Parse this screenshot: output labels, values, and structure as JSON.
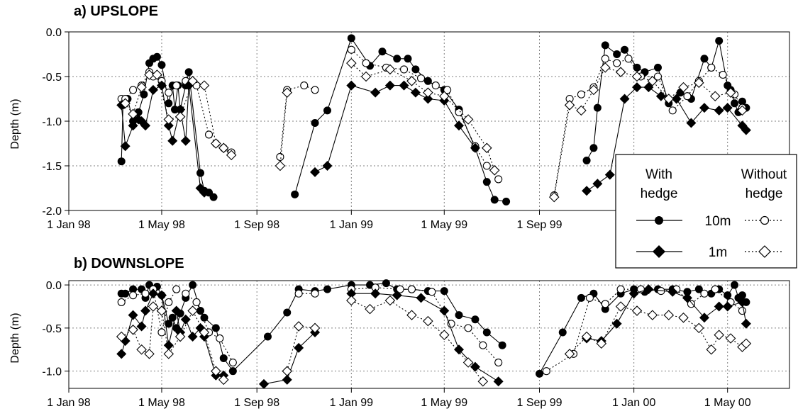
{
  "chart_data": [
    {
      "type": "scatter",
      "panel_id": "upslope",
      "title": "a) UPSLOPE",
      "ylabel": "Depth (m)",
      "xlim": [
        "1998-01-01",
        "2000-07-20"
      ],
      "ylim": [
        -2.0,
        0.0
      ],
      "y_ticks": [
        0.0,
        -0.5,
        -1.0,
        -1.5,
        -2.0
      ],
      "y_tick_labels": [
        "0.0",
        "-0.5",
        "-1.0",
        "-1.5",
        "-2.0"
      ],
      "x_ticks": [
        "1998-01-01",
        "1998-05-01",
        "1998-09-01",
        "1999-01-01",
        "1999-05-01",
        "1999-09-01",
        "2000-01-01",
        "2000-05-01"
      ],
      "x_tick_labels": [
        "1 Jan 98",
        "1 May 98",
        "1 Sep 98",
        "1 Jan 99",
        "1 May 99",
        "1 Sep 99",
        "1 J",
        ""
      ],
      "grid": true,
      "legend_position": "right",
      "series": [
        {
          "name": "10m With hedge",
          "marker": "circle-filled",
          "line": "solid",
          "x": [
            "1998-03-10",
            "1998-03-12",
            "1998-03-18",
            "1998-03-25",
            "1998-04-01",
            "1998-04-08",
            "1998-04-15",
            "1998-04-20",
            "1998-04-25",
            "1998-05-01",
            "1998-05-10",
            "1998-05-15",
            "1998-05-18",
            "1998-05-22",
            "1998-05-25",
            "1998-06-01",
            "1998-06-05",
            "1998-06-20",
            "1998-06-25",
            "1998-07-01",
            "1998-07-07",
            "1998-10-20",
            "1998-11-15",
            "1998-12-01",
            "1999-01-01",
            "1999-01-25",
            "1999-02-10",
            "1999-03-01",
            "1999-03-15",
            "1999-03-25",
            "1999-04-10",
            "1999-05-01",
            "1999-05-20",
            "1999-06-10",
            "1999-06-25",
            "1999-07-05",
            "1999-07-20",
            "1999-11-01",
            "1999-11-10",
            "1999-11-15",
            "1999-11-25",
            "1999-12-10",
            "1999-12-20",
            "2000-01-05",
            "2000-01-15",
            "2000-02-01",
            "2000-02-15",
            "2000-03-01",
            "2000-03-15",
            "2000-04-01",
            "2000-04-10",
            "2000-04-20",
            "2000-05-01",
            "2000-05-05",
            "2000-05-10",
            "2000-05-15",
            "2000-05-20",
            "2000-05-25"
          ],
          "y": [
            -1.45,
            -0.82,
            -0.75,
            -1.0,
            -0.9,
            -0.7,
            -0.35,
            -0.3,
            -0.28,
            -0.37,
            -0.8,
            -0.6,
            -0.87,
            -0.6,
            -0.87,
            -0.6,
            -0.45,
            -1.58,
            -1.78,
            -1.8,
            -1.85,
            -1.82,
            -1.02,
            -0.88,
            -0.07,
            -0.38,
            -0.22,
            -0.3,
            -0.3,
            -0.42,
            -0.55,
            -0.65,
            -0.87,
            -1.3,
            -1.68,
            -1.88,
            -1.9,
            -1.44,
            -1.3,
            -0.85,
            -0.15,
            -0.25,
            -0.2,
            -0.4,
            -0.45,
            -0.4,
            -0.8,
            -0.68,
            -0.75,
            -0.3,
            -0.4,
            -0.1,
            -0.6,
            -0.65,
            -0.8,
            -0.9,
            -0.78,
            -0.85
          ]
        },
        {
          "name": "10m Without hedge",
          "marker": "circle-open",
          "line": "dotted",
          "x": [
            "1998-03-10",
            "1998-03-15",
            "1998-03-25",
            "1998-04-05",
            "1998-04-15",
            "1998-04-20",
            "1998-05-01",
            "1998-05-10",
            "1998-05-20",
            "1998-06-01",
            "1998-06-15",
            "1998-07-01",
            "1998-07-10",
            "1998-07-20",
            "1998-07-30",
            "1998-10-01",
            "1998-10-10",
            "1998-11-01",
            "1998-11-15",
            "1999-01-01",
            "1999-01-20",
            "1999-02-15",
            "1999-03-10",
            "1999-04-01",
            "1999-04-20",
            "1999-05-05",
            "1999-05-20",
            "1999-06-10",
            "1999-06-25",
            "1999-07-10",
            "1999-09-20",
            "1999-10-10",
            "1999-10-25",
            "1999-11-10",
            "1999-11-25",
            "1999-12-10",
            "1999-12-25",
            "2000-01-10",
            "2000-02-01",
            "2000-02-20",
            "2000-03-10",
            "2000-03-25",
            "2000-04-10",
            "2000-04-25",
            "2000-05-10",
            "2000-05-20"
          ],
          "y": [
            -0.75,
            -0.75,
            -0.65,
            -0.6,
            -0.45,
            -0.5,
            -0.55,
            -0.68,
            -0.6,
            -0.55,
            -0.6,
            -1.15,
            -1.25,
            -1.3,
            -1.35,
            -1.4,
            -0.65,
            -0.6,
            -0.65,
            -0.2,
            -0.35,
            -0.4,
            -0.42,
            -0.52,
            -0.6,
            -0.65,
            -0.9,
            -1.28,
            -1.5,
            -1.65,
            -1.83,
            -0.75,
            -0.7,
            -0.62,
            -0.3,
            -0.35,
            -0.3,
            -0.5,
            -0.5,
            -0.88,
            -0.72,
            -0.55,
            -0.4,
            -0.48,
            -0.7,
            -0.85
          ]
        },
        {
          "name": "1m With hedge",
          "marker": "diamond-filled",
          "line": "solid",
          "x": [
            "1998-03-10",
            "1998-03-15",
            "1998-03-25",
            "1998-04-01",
            "1998-04-05",
            "1998-04-10",
            "1998-04-20",
            "1998-05-01",
            "1998-05-10",
            "1998-05-15",
            "1998-05-25",
            "1998-06-01",
            "1998-06-05",
            "1998-06-20",
            "1998-06-25",
            "1998-11-15",
            "1998-12-01",
            "1999-01-01",
            "1999-02-01",
            "1999-02-20",
            "1999-03-10",
            "1999-03-25",
            "1999-04-10",
            "1999-05-01",
            "1999-05-20",
            "1999-06-10",
            "1999-11-01",
            "1999-11-15",
            "1999-12-01",
            "1999-12-20",
            "2000-01-05",
            "2000-01-20",
            "2000-02-05",
            "2000-02-25",
            "2000-03-15",
            "2000-04-01",
            "2000-04-20",
            "2000-05-01",
            "2000-05-20",
            "2000-05-25"
          ],
          "y": [
            -0.82,
            -1.28,
            -1.05,
            -0.98,
            -1.0,
            -1.05,
            -0.65,
            -0.6,
            -1.05,
            -1.22,
            -0.87,
            -1.22,
            -0.6,
            -1.75,
            -1.8,
            -1.57,
            -1.5,
            -0.6,
            -0.68,
            -0.6,
            -0.6,
            -0.68,
            -0.75,
            -0.77,
            -1.05,
            -1.3,
            -1.78,
            -1.7,
            -1.6,
            -0.75,
            -0.62,
            -0.62,
            -0.72,
            -0.75,
            -1.02,
            -0.85,
            -0.88,
            -0.85,
            -1.05,
            -1.1
          ]
        },
        {
          "name": "1m Without hedge",
          "marker": "diamond-open",
          "line": "dotted",
          "x": [
            "1998-03-15",
            "1998-03-25",
            "1998-04-05",
            "1998-04-15",
            "1998-04-25",
            "1998-05-10",
            "1998-05-25",
            "1998-06-10",
            "1998-06-25",
            "1998-07-10",
            "1998-07-20",
            "1998-07-30",
            "1998-10-01",
            "1998-10-10",
            "1999-01-01",
            "1999-01-20",
            "1999-02-20",
            "1999-03-20",
            "1999-04-10",
            "1999-05-01",
            "1999-06-01",
            "1999-06-25",
            "1999-07-05",
            "1999-09-20",
            "1999-10-10",
            "1999-10-25",
            "1999-11-10",
            "1999-11-25",
            "1999-12-15",
            "2000-01-05",
            "2000-01-25",
            "2000-02-15",
            "2000-03-05",
            "2000-03-25",
            "2000-04-15",
            "2000-05-05",
            "2000-05-20"
          ],
          "y": [
            -0.8,
            -0.92,
            -0.62,
            -0.48,
            -0.48,
            -0.98,
            -0.95,
            -0.55,
            -0.6,
            -1.25,
            -1.3,
            -1.38,
            -1.5,
            -0.68,
            -0.35,
            -0.5,
            -0.42,
            -0.55,
            -0.68,
            -0.72,
            -0.98,
            -1.3,
            -1.55,
            -1.85,
            -0.82,
            -0.88,
            -0.65,
            -0.4,
            -0.45,
            -0.5,
            -0.55,
            -0.75,
            -0.62,
            -0.57,
            -0.72,
            -0.68,
            -0.88
          ]
        }
      ]
    },
    {
      "type": "scatter",
      "panel_id": "downslope",
      "title": "b) DOWNSLOPE",
      "ylabel": "Depth (m)",
      "xlim": [
        "1998-01-01",
        "2000-07-20"
      ],
      "ylim": [
        -1.2,
        0.05
      ],
      "y_ticks": [
        0.0,
        -0.5,
        -1.0
      ],
      "y_tick_labels": [
        "0.0",
        "-0.5",
        "-1.0"
      ],
      "x_ticks": [
        "1998-01-01",
        "1998-05-01",
        "1998-09-01",
        "1999-01-01",
        "1999-05-01",
        "1999-09-01",
        "2000-01-01",
        "2000-05-01"
      ],
      "x_tick_labels": [
        "1 Jan 98",
        "1 May 98",
        "1 Sep 98",
        "1 Jan 99",
        "1 May 99",
        "1 Sep 99",
        "1 Jan 00",
        "1 May 00"
      ],
      "grid": true,
      "series": [
        {
          "name": "10m With hedge",
          "marker": "circle-filled",
          "line": "solid",
          "x": [
            "1998-03-10",
            "1998-03-15",
            "1998-03-25",
            "1998-04-05",
            "1998-04-10",
            "1998-04-15",
            "1998-04-20",
            "1998-04-25",
            "1998-05-01",
            "1998-05-10",
            "1998-05-15",
            "1998-05-20",
            "1998-05-25",
            "1998-06-01",
            "1998-06-10",
            "1998-06-20",
            "1998-06-25",
            "1998-07-10",
            "1998-07-20",
            "1998-08-01",
            "1998-09-15",
            "1998-10-10",
            "1998-10-25",
            "1998-11-15",
            "1998-12-01",
            "1999-01-01",
            "1999-01-25",
            "1999-02-15",
            "1999-03-01",
            "1999-03-20",
            "1999-04-10",
            "1999-05-01",
            "1999-05-20",
            "1999-06-10",
            "1999-06-25",
            "1999-07-15",
            "1999-09-01",
            "1999-10-01",
            "1999-10-25",
            "1999-11-10",
            "1999-11-25",
            "1999-12-15",
            "2000-01-01",
            "2000-01-15",
            "2000-02-01",
            "2000-02-20",
            "2000-03-10",
            "2000-03-25",
            "2000-04-10",
            "2000-04-20",
            "2000-05-01",
            "2000-05-10",
            "2000-05-15",
            "2000-05-20",
            "2000-05-25"
          ],
          "y": [
            -0.1,
            -0.1,
            -0.05,
            -0.05,
            -0.15,
            -0.0,
            -0.05,
            -0.02,
            -0.12,
            -0.45,
            -0.38,
            -0.5,
            -0.33,
            -0.15,
            -0.0,
            -0.3,
            -0.38,
            -0.5,
            -0.85,
            -1.0,
            -0.6,
            -0.32,
            -0.05,
            -0.07,
            -0.05,
            -0.0,
            0.0,
            0.02,
            -0.05,
            -0.05,
            -0.07,
            -0.07,
            -0.35,
            -0.4,
            -0.55,
            -0.7,
            -1.03,
            -0.55,
            -0.15,
            -0.1,
            -0.28,
            -0.1,
            -0.05,
            -0.08,
            -0.05,
            -0.05,
            -0.08,
            -0.05,
            -0.1,
            -0.05,
            -0.12,
            0.0,
            -0.15,
            -0.12,
            -0.2
          ]
        },
        {
          "name": "10m Without hedge",
          "marker": "circle-open",
          "line": "dotted",
          "x": [
            "1998-03-10",
            "1998-03-25",
            "1998-04-10",
            "1998-04-20",
            "1998-05-01",
            "1998-05-10",
            "1998-05-20",
            "1998-06-01",
            "1998-06-15",
            "1998-07-01",
            "1998-07-15",
            "1998-08-01",
            "1998-10-25",
            "1998-11-15",
            "1999-01-01",
            "1999-02-01",
            "1999-03-05",
            "1999-03-20",
            "1999-04-15",
            "1999-05-10",
            "1999-06-01",
            "1999-06-20",
            "1999-07-10",
            "1999-09-10",
            "1999-10-15",
            "1999-11-05",
            "1999-11-25",
            "1999-12-15",
            "2000-01-10",
            "2000-02-05",
            "2000-02-25",
            "2000-03-15",
            "2000-04-01",
            "2000-04-15",
            "2000-05-05",
            "2000-05-20"
          ],
          "y": [
            -0.2,
            -0.12,
            -0.1,
            -0.05,
            -0.55,
            -0.2,
            -0.05,
            -0.1,
            -0.2,
            -0.55,
            -0.62,
            -0.9,
            -0.1,
            -0.1,
            -0.05,
            -0.03,
            -0.05,
            -0.05,
            -0.08,
            -0.45,
            -0.5,
            -0.7,
            -0.9,
            -1.0,
            -0.8,
            -0.15,
            -0.22,
            -0.05,
            -0.05,
            -0.07,
            -0.05,
            -0.22,
            -0.1,
            -0.05,
            -0.2,
            -0.3
          ]
        },
        {
          "name": "1m With hedge",
          "marker": "diamond-filled",
          "line": "solid",
          "x": [
            "1998-03-10",
            "1998-03-15",
            "1998-03-25",
            "1998-04-05",
            "1998-04-10",
            "1998-04-20",
            "1998-05-01",
            "1998-05-10",
            "1998-05-20",
            "1998-05-25",
            "1998-06-01",
            "1998-06-10",
            "1998-06-20",
            "1998-06-25",
            "1998-07-10",
            "1998-07-20",
            "1998-09-10",
            "1998-10-10",
            "1998-10-25",
            "1998-11-15",
            "1999-01-01",
            "1999-02-01",
            "1999-03-01",
            "1999-04-01",
            "1999-05-01",
            "1999-05-20",
            "1999-06-10",
            "1999-07-10",
            "1999-11-01",
            "1999-11-20",
            "1999-12-10",
            "2000-01-01",
            "2000-01-20",
            "2000-02-20",
            "2000-03-10",
            "2000-04-01",
            "2000-04-20",
            "2000-05-01",
            "2000-05-20",
            "2000-05-25"
          ],
          "y": [
            -0.8,
            -0.65,
            -0.35,
            -0.48,
            -0.3,
            -0.1,
            -0.12,
            -0.7,
            -0.3,
            -0.55,
            -0.4,
            -0.6,
            -0.5,
            -0.6,
            -1.05,
            -1.05,
            -1.15,
            -1.1,
            -0.73,
            -0.55,
            -0.1,
            -0.1,
            -0.12,
            -0.15,
            -0.3,
            -0.75,
            -0.95,
            -1.12,
            -0.62,
            -0.65,
            -0.45,
            -0.1,
            -0.05,
            -0.08,
            -0.15,
            -0.38,
            -0.25,
            -0.25,
            -0.2,
            -0.45
          ]
        },
        {
          "name": "1m Without hedge",
          "marker": "diamond-open",
          "line": "dotted",
          "x": [
            "1998-03-10",
            "1998-03-25",
            "1998-04-05",
            "1998-04-15",
            "1998-04-20",
            "1998-05-01",
            "1998-05-10",
            "1998-05-25",
            "1998-06-10",
            "1998-06-25",
            "1998-07-10",
            "1998-07-20",
            "1998-10-10",
            "1998-10-25",
            "1998-11-15",
            "1999-01-01",
            "1999-01-25",
            "1999-02-20",
            "1999-03-20",
            "1999-04-10",
            "1999-05-01",
            "1999-06-01",
            "1999-06-20",
            "1999-10-10",
            "1999-11-01",
            "1999-11-20",
            "1999-12-15",
            "2000-01-05",
            "2000-01-25",
            "2000-02-15",
            "2000-03-05",
            "2000-03-25",
            "2000-04-10",
            "2000-04-20",
            "2000-05-05",
            "2000-05-20",
            "2000-05-25"
          ],
          "y": [
            -0.6,
            -0.52,
            -0.75,
            -0.8,
            -0.25,
            -0.3,
            -0.8,
            -0.6,
            -0.3,
            -0.55,
            -1.0,
            -1.1,
            -1.0,
            -0.48,
            -0.5,
            -0.18,
            -0.28,
            -0.18,
            -0.35,
            -0.42,
            -0.58,
            -0.9,
            -1.12,
            -0.8,
            -0.6,
            -0.68,
            -0.25,
            -0.3,
            -0.35,
            -0.35,
            -0.38,
            -0.5,
            -0.75,
            -0.58,
            -0.62,
            -0.72,
            -0.68
          ]
        }
      ]
    }
  ],
  "legend": {
    "col1_line1": "With",
    "col1_line2": "hedge",
    "col2_line1": "Without",
    "col2_line2": "hedge",
    "row1_label": "10m",
    "row2_label": "1m"
  }
}
